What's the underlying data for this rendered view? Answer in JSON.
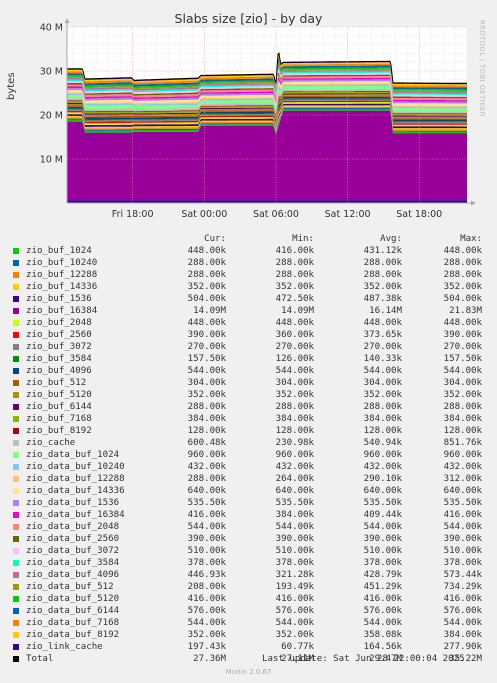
{
  "title": "Slabs size [zio] - by day",
  "side_label": "RRDTOOL / TOBI OETIKER",
  "columns": [
    "Cur:",
    "Min:",
    "Avg:",
    "Max:"
  ],
  "last_update": "Last update: Sat Jun 28 22:00:04 2025",
  "munin": "Munin 2.0.67",
  "chart_data": {
    "type": "area",
    "title": "Slabs size [zio] - by day",
    "ylabel": "bytes",
    "ytick_labels": [
      "10 M",
      "20 M",
      "30 M",
      "40 M"
    ],
    "yticks": [
      10,
      20,
      30,
      40
    ],
    "ylim": [
      0,
      40
    ],
    "y_unit": "M bytes",
    "xtick_labels": [
      "Fri 18:00",
      "Sat 00:00",
      "Sat 06:00",
      "Sat 12:00",
      "Sat 18:00"
    ],
    "xticks": [
      5.5,
      11.5,
      17.5,
      23.5,
      29.5
    ],
    "xlim": [
      0,
      33.5
    ],
    "grid": true,
    "total_approx": {
      "x": [
        0,
        1.3,
        1.5,
        5.4,
        5.6,
        11.0,
        11.2,
        17.3,
        17.5,
        17.7,
        17.9,
        18.1,
        27.1,
        27.3,
        33.5
      ],
      "y": [
        30.5,
        30.5,
        28.2,
        28.5,
        27.9,
        28.4,
        29.0,
        29.3,
        27.0,
        35.0,
        31.5,
        32.0,
        32.2,
        27.3,
        27.2
      ]
    },
    "base_16384_approx": {
      "x": [
        0,
        1.3,
        1.5,
        5.4,
        5.6,
        11.0,
        11.2,
        17.3,
        17.5,
        18.1,
        27.1,
        27.3,
        33.5
      ],
      "y": [
        18.5,
        18.5,
        16.0,
        16.0,
        16.2,
        16.2,
        17.5,
        17.5,
        15.5,
        21.0,
        21.0,
        15.8,
        15.8
      ]
    },
    "series": [
      {
        "name": "zio_buf_1024",
        "color": "#00cc00",
        "cur": "448.00k",
        "min": "416.00k",
        "avg": "431.12k",
        "max": "448.00k"
      },
      {
        "name": "zio_buf_10240",
        "color": "#0066b3",
        "cur": "288.00k",
        "min": "288.00k",
        "avg": "288.00k",
        "max": "288.00k"
      },
      {
        "name": "zio_buf_12288",
        "color": "#ff8000",
        "cur": "288.00k",
        "min": "288.00k",
        "avg": "288.00k",
        "max": "288.00k"
      },
      {
        "name": "zio_buf_14336",
        "color": "#ffcc00",
        "cur": "352.00k",
        "min": "352.00k",
        "avg": "352.00k",
        "max": "352.00k"
      },
      {
        "name": "zio_buf_1536",
        "color": "#330099",
        "cur": "504.00k",
        "min": "472.50k",
        "avg": "487.38k",
        "max": "504.00k"
      },
      {
        "name": "zio_buf_16384",
        "color": "#990099",
        "cur": "14.09M",
        "min": "14.09M",
        "avg": "16.14M",
        "max": "21.83M"
      },
      {
        "name": "zio_buf_2048",
        "color": "#ccff00",
        "cur": "448.00k",
        "min": "448.00k",
        "avg": "448.00k",
        "max": "448.00k"
      },
      {
        "name": "zio_buf_2560",
        "color": "#ff0000",
        "cur": "390.00k",
        "min": "360.00k",
        "avg": "373.65k",
        "max": "390.00k"
      },
      {
        "name": "zio_buf_3072",
        "color": "#808080",
        "cur": "270.00k",
        "min": "270.00k",
        "avg": "270.00k",
        "max": "270.00k"
      },
      {
        "name": "zio_buf_3584",
        "color": "#008f00",
        "cur": "157.50k",
        "min": "126.00k",
        "avg": "140.33k",
        "max": "157.50k"
      },
      {
        "name": "zio_buf_4096",
        "color": "#00487d",
        "cur": "544.00k",
        "min": "544.00k",
        "avg": "544.00k",
        "max": "544.00k"
      },
      {
        "name": "zio_buf_512",
        "color": "#b35a00",
        "cur": "304.00k",
        "min": "304.00k",
        "avg": "304.00k",
        "max": "304.00k"
      },
      {
        "name": "zio_buf_5120",
        "color": "#b38f00",
        "cur": "352.00k",
        "min": "352.00k",
        "avg": "352.00k",
        "max": "352.00k"
      },
      {
        "name": "zio_buf_6144",
        "color": "#6b006b",
        "cur": "288.00k",
        "min": "288.00k",
        "avg": "288.00k",
        "max": "288.00k"
      },
      {
        "name": "zio_buf_7168",
        "color": "#8fb300",
        "cur": "384.00k",
        "min": "384.00k",
        "avg": "384.00k",
        "max": "384.00k"
      },
      {
        "name": "zio_buf_8192",
        "color": "#b30000",
        "cur": "128.00k",
        "min": "128.00k",
        "avg": "128.00k",
        "max": "128.00k"
      },
      {
        "name": "zio_cache",
        "color": "#bebebe",
        "cur": "600.48k",
        "min": "230.98k",
        "avg": "540.94k",
        "max": "851.76k"
      },
      {
        "name": "zio_data_buf_1024",
        "color": "#80ff80",
        "cur": "960.00k",
        "min": "960.00k",
        "avg": "960.00k",
        "max": "960.00k"
      },
      {
        "name": "zio_data_buf_10240",
        "color": "#80c9ff",
        "cur": "432.00k",
        "min": "432.00k",
        "avg": "432.00k",
        "max": "432.00k"
      },
      {
        "name": "zio_data_buf_12288",
        "color": "#ffc080",
        "cur": "288.00k",
        "min": "264.00k",
        "avg": "290.10k",
        "max": "312.00k"
      },
      {
        "name": "zio_data_buf_14336",
        "color": "#ffe680",
        "cur": "640.00k",
        "min": "640.00k",
        "avg": "640.00k",
        "max": "640.00k"
      },
      {
        "name": "zio_data_buf_1536",
        "color": "#aa80ff",
        "cur": "535.50k",
        "min": "535.50k",
        "avg": "535.50k",
        "max": "535.50k"
      },
      {
        "name": "zio_data_buf_16384",
        "color": "#ee00cc",
        "cur": "416.00k",
        "min": "384.00k",
        "avg": "409.44k",
        "max": "416.00k"
      },
      {
        "name": "zio_data_buf_2048",
        "color": "#ff8080",
        "cur": "544.00k",
        "min": "544.00k",
        "avg": "544.00k",
        "max": "544.00k"
      },
      {
        "name": "zio_data_buf_2560",
        "color": "#666600",
        "cur": "390.00k",
        "min": "390.00k",
        "avg": "390.00k",
        "max": "390.00k"
      },
      {
        "name": "zio_data_buf_3072",
        "color": "#ffbfff",
        "cur": "510.00k",
        "min": "510.00k",
        "avg": "510.00k",
        "max": "510.00k"
      },
      {
        "name": "zio_data_buf_3584",
        "color": "#00ffcc",
        "cur": "378.00k",
        "min": "378.00k",
        "avg": "378.00k",
        "max": "378.00k"
      },
      {
        "name": "zio_data_buf_4096",
        "color": "#cc6699",
        "cur": "446.93k",
        "min": "321.28k",
        "avg": "428.79k",
        "max": "573.44k"
      },
      {
        "name": "zio_data_buf_512",
        "color": "#999900",
        "cur": "208.00k",
        "min": "193.49k",
        "avg": "451.29k",
        "max": "734.29k"
      },
      {
        "name": "zio_data_buf_5120",
        "color": "#00cc00",
        "cur": "416.00k",
        "min": "416.00k",
        "avg": "416.00k",
        "max": "416.00k"
      },
      {
        "name": "zio_data_buf_6144",
        "color": "#0066b3",
        "cur": "576.00k",
        "min": "576.00k",
        "avg": "576.00k",
        "max": "576.00k"
      },
      {
        "name": "zio_data_buf_7168",
        "color": "#ff8000",
        "cur": "544.00k",
        "min": "544.00k",
        "avg": "544.00k",
        "max": "544.00k"
      },
      {
        "name": "zio_data_buf_8192",
        "color": "#ffcc00",
        "cur": "352.00k",
        "min": "352.00k",
        "avg": "358.08k",
        "max": "384.00k"
      },
      {
        "name": "zio_link_cache",
        "color": "#330099",
        "cur": "197.43k",
        "min": "60.77k",
        "avg": "164.56k",
        "max": "277.90k"
      }
    ],
    "total": {
      "name": "Total",
      "color": "#000000",
      "cur": "27.36M",
      "min": "27.11M",
      "avg": "29.47M",
      "max": "35.22M"
    }
  }
}
